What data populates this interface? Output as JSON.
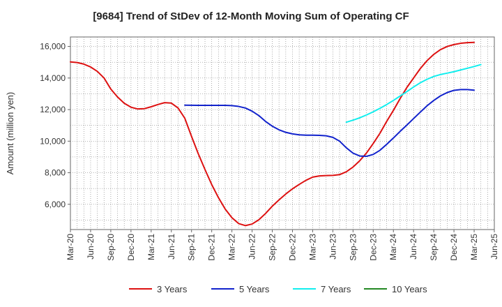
{
  "chart_data": {
    "type": "line",
    "title": "[9684]  Trend of StDev of 12-Month Moving Sum of Operating CF",
    "xlabel": "",
    "ylabel": "Amount (million yen)",
    "x_ticks": [
      "Mar-20",
      "Jun-20",
      "Sep-20",
      "Dec-20",
      "Mar-21",
      "Jun-21",
      "Sep-21",
      "Dec-21",
      "Mar-22",
      "Jun-22",
      "Sep-22",
      "Dec-22",
      "Mar-23",
      "Jun-23",
      "Sep-23",
      "Dec-23",
      "Mar-24",
      "Jun-24",
      "Sep-24",
      "Dec-24",
      "Mar-25",
      "Jun-25"
    ],
    "y_ticks": [
      6000,
      8000,
      10000,
      12000,
      14000,
      16000
    ],
    "y_tick_labels": [
      "6,000",
      "8,000",
      "10,000",
      "12,000",
      "14,000",
      "16,000"
    ],
    "ylim": [
      4400,
      16600
    ],
    "x_range_months": [
      0,
      63
    ],
    "grid": true,
    "legend_position": "bottom",
    "series": [
      {
        "name": "3 Years",
        "color": "#dd1111",
        "points": [
          [
            0,
            15020
          ],
          [
            1,
            14980
          ],
          [
            2,
            14880
          ],
          [
            3,
            14700
          ],
          [
            4,
            14420
          ],
          [
            5,
            14000
          ],
          [
            6,
            13300
          ],
          [
            7,
            12800
          ],
          [
            8,
            12400
          ],
          [
            9,
            12150
          ],
          [
            10,
            12040
          ],
          [
            11,
            12060
          ],
          [
            12,
            12180
          ],
          [
            13,
            12320
          ],
          [
            14,
            12440
          ],
          [
            15,
            12410
          ],
          [
            16,
            12100
          ],
          [
            17,
            11450
          ],
          [
            18,
            10300
          ],
          [
            19,
            9200
          ],
          [
            20,
            8200
          ],
          [
            21,
            7250
          ],
          [
            22,
            6420
          ],
          [
            23,
            5700
          ],
          [
            24,
            5150
          ],
          [
            25,
            4780
          ],
          [
            26,
            4650
          ],
          [
            27,
            4750
          ],
          [
            28,
            5020
          ],
          [
            29,
            5420
          ],
          [
            30,
            5880
          ],
          [
            31,
            6280
          ],
          [
            32,
            6650
          ],
          [
            33,
            6980
          ],
          [
            34,
            7260
          ],
          [
            35,
            7520
          ],
          [
            36,
            7720
          ],
          [
            37,
            7800
          ],
          [
            38,
            7820
          ],
          [
            39,
            7830
          ],
          [
            40,
            7880
          ],
          [
            41,
            8060
          ],
          [
            42,
            8360
          ],
          [
            43,
            8760
          ],
          [
            44,
            9250
          ],
          [
            45,
            9850
          ],
          [
            46,
            10500
          ],
          [
            47,
            11250
          ],
          [
            48,
            11950
          ],
          [
            49,
            12700
          ],
          [
            50,
            13400
          ],
          [
            51,
            14000
          ],
          [
            52,
            14600
          ],
          [
            53,
            15100
          ],
          [
            54,
            15500
          ],
          [
            55,
            15800
          ],
          [
            56,
            16000
          ],
          [
            57,
            16120
          ],
          [
            58,
            16200
          ],
          [
            59,
            16240
          ],
          [
            60,
            16260
          ]
        ]
      },
      {
        "name": "5 Years",
        "color": "#1122cc",
        "points": [
          [
            17,
            12280
          ],
          [
            18,
            12275
          ],
          [
            19,
            12270
          ],
          [
            20,
            12270
          ],
          [
            21,
            12270
          ],
          [
            22,
            12270
          ],
          [
            23,
            12270
          ],
          [
            24,
            12250
          ],
          [
            25,
            12200
          ],
          [
            26,
            12100
          ],
          [
            27,
            11900
          ],
          [
            28,
            11620
          ],
          [
            29,
            11250
          ],
          [
            30,
            10950
          ],
          [
            31,
            10720
          ],
          [
            32,
            10560
          ],
          [
            33,
            10460
          ],
          [
            34,
            10400
          ],
          [
            35,
            10380
          ],
          [
            36,
            10380
          ],
          [
            37,
            10370
          ],
          [
            38,
            10340
          ],
          [
            39,
            10240
          ],
          [
            40,
            10000
          ],
          [
            41,
            9580
          ],
          [
            42,
            9240
          ],
          [
            43,
            9060
          ],
          [
            44,
            9040
          ],
          [
            45,
            9160
          ],
          [
            46,
            9420
          ],
          [
            47,
            9800
          ],
          [
            48,
            10200
          ],
          [
            49,
            10620
          ],
          [
            50,
            11020
          ],
          [
            51,
            11430
          ],
          [
            52,
            11840
          ],
          [
            53,
            12240
          ],
          [
            54,
            12580
          ],
          [
            55,
            12870
          ],
          [
            56,
            13080
          ],
          [
            57,
            13220
          ],
          [
            58,
            13270
          ],
          [
            59,
            13270
          ],
          [
            60,
            13230
          ]
        ]
      },
      {
        "name": "7 Years",
        "color": "#11eeee",
        "points": [
          [
            41,
            11200
          ],
          [
            42,
            11330
          ],
          [
            43,
            11480
          ],
          [
            44,
            11660
          ],
          [
            45,
            11860
          ],
          [
            46,
            12080
          ],
          [
            47,
            12320
          ],
          [
            48,
            12580
          ],
          [
            49,
            12860
          ],
          [
            50,
            13140
          ],
          [
            51,
            13430
          ],
          [
            52,
            13700
          ],
          [
            53,
            13920
          ],
          [
            54,
            14100
          ],
          [
            55,
            14220
          ],
          [
            56,
            14310
          ],
          [
            57,
            14400
          ],
          [
            58,
            14510
          ],
          [
            59,
            14620
          ],
          [
            60,
            14730
          ],
          [
            61,
            14850
          ]
        ]
      },
      {
        "name": "10 Years",
        "color": "#228822",
        "points": []
      }
    ]
  }
}
